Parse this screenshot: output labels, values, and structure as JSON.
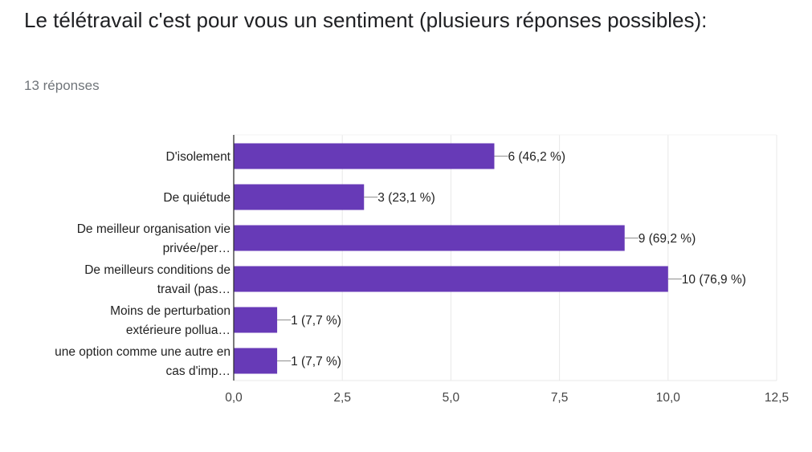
{
  "question": {
    "title": "Le télétravail c'est pour vous un sentiment (plusieurs réponses possibles):",
    "response_count": "13 réponses"
  },
  "colors": {
    "bar": "#673ab7",
    "axis": "#333333",
    "grid": "#e8e8e8",
    "leader": "#9e9e9e"
  },
  "chart_data": {
    "type": "bar",
    "orientation": "horizontal",
    "title": "Le télétravail c'est pour vous un sentiment (plusieurs réponses possibles):",
    "xlabel": "",
    "ylabel": "",
    "xlim": [
      0,
      12.5
    ],
    "grid": true,
    "legend": "none",
    "ticks": [
      "0,0",
      "2,5",
      "5,0",
      "7,5",
      "10,0",
      "12,5"
    ],
    "tick_values": [
      0,
      2.5,
      5,
      7.5,
      10,
      12.5
    ],
    "categories": [
      [
        "D'isolement"
      ],
      [
        "De quiétude"
      ],
      [
        "De meilleur organisation vie",
        "privée/per…"
      ],
      [
        "De meilleurs conditions de",
        "travail (pas…"
      ],
      [
        "Moins de perturbation",
        "extérieure pollua…"
      ],
      [
        "une option comme une autre en",
        "cas d'imp…"
      ]
    ],
    "values": [
      6,
      3,
      9,
      10,
      1,
      1
    ],
    "data_labels": [
      "6 (46,2 %)",
      "3 (23,1 %)",
      "9 (69,2 %)",
      "10 (76,9 %)",
      "1 (7,7 %)",
      "1 (7,7 %)"
    ]
  }
}
